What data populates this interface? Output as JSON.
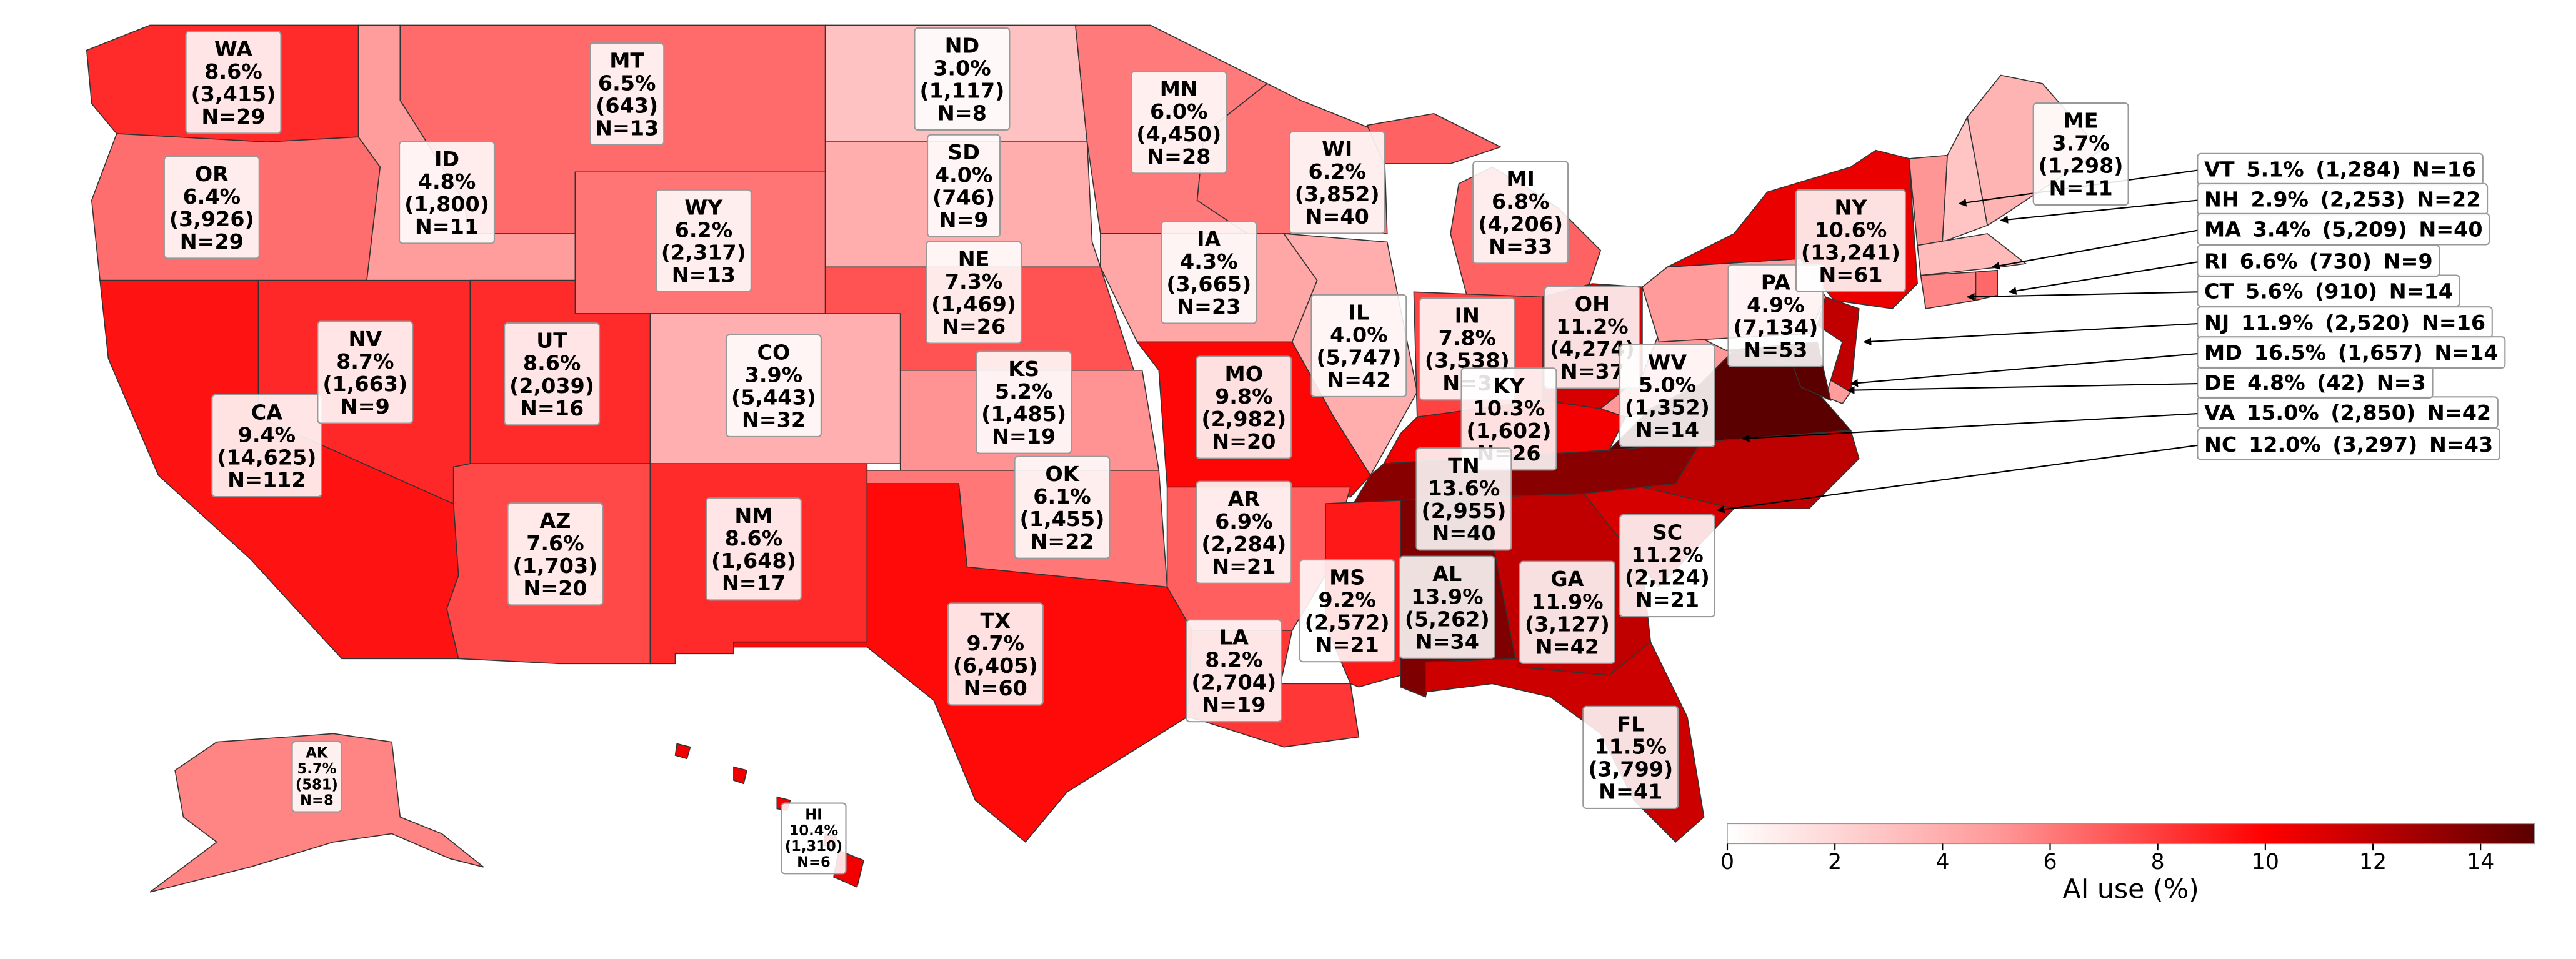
{
  "colorbar": {
    "label": "AI use (%)",
    "lim": [
      0,
      15
    ],
    "ticks": [
      0,
      2,
      4,
      6,
      8,
      10,
      12,
      14
    ],
    "colors": [
      "#ffffff",
      "#ff9999",
      "#ff0000",
      "#5a0000"
    ]
  },
  "states": [
    {
      "code": "WA",
      "value": 8.6,
      "value_label": "8.6%",
      "count": "(3,415)",
      "n": "N=29"
    },
    {
      "code": "OR",
      "value": 6.4,
      "value_label": "6.4%",
      "count": "(3,926)",
      "n": "N=29"
    },
    {
      "code": "CA",
      "value": 9.4,
      "value_label": "9.4%",
      "count": "(14,625)",
      "n": "N=112"
    },
    {
      "code": "NV",
      "value": 8.7,
      "value_label": "8.7%",
      "count": "(1,663)",
      "n": "N=9"
    },
    {
      "code": "ID",
      "value": 4.8,
      "value_label": "4.8%",
      "count": "(1,800)",
      "n": "N=11"
    },
    {
      "code": "MT",
      "value": 6.5,
      "value_label": "6.5%",
      "count": "(643)",
      "n": "N=13"
    },
    {
      "code": "WY",
      "value": 6.2,
      "value_label": "6.2%",
      "count": "(2,317)",
      "n": "N=13"
    },
    {
      "code": "UT",
      "value": 8.6,
      "value_label": "8.6%",
      "count": "(2,039)",
      "n": "N=16"
    },
    {
      "code": "CO",
      "value": 3.9,
      "value_label": "3.9%",
      "count": "(5,443)",
      "n": "N=32"
    },
    {
      "code": "AZ",
      "value": 7.6,
      "value_label": "7.6%",
      "count": "(1,703)",
      "n": "N=20"
    },
    {
      "code": "NM",
      "value": 8.6,
      "value_label": "8.6%",
      "count": "(1,648)",
      "n": "N=17"
    },
    {
      "code": "ND",
      "value": 3.0,
      "value_label": "3.0%",
      "count": "(1,117)",
      "n": "N=8"
    },
    {
      "code": "SD",
      "value": 4.0,
      "value_label": "4.0%",
      "count": "(746)",
      "n": "N=9"
    },
    {
      "code": "NE",
      "value": 7.3,
      "value_label": "7.3%",
      "count": "(1,469)",
      "n": "N=26"
    },
    {
      "code": "KS",
      "value": 5.2,
      "value_label": "5.2%",
      "count": "(1,485)",
      "n": "N=19"
    },
    {
      "code": "OK",
      "value": 6.1,
      "value_label": "6.1%",
      "count": "(1,455)",
      "n": "N=22"
    },
    {
      "code": "TX",
      "value": 9.7,
      "value_label": "9.7%",
      "count": "(6,405)",
      "n": "N=60"
    },
    {
      "code": "MN",
      "value": 6.0,
      "value_label": "6.0%",
      "count": "(4,450)",
      "n": "N=28"
    },
    {
      "code": "IA",
      "value": 4.3,
      "value_label": "4.3%",
      "count": "(3,665)",
      "n": "N=23"
    },
    {
      "code": "MO",
      "value": 9.8,
      "value_label": "9.8%",
      "count": "(2,982)",
      "n": "N=20"
    },
    {
      "code": "AR",
      "value": 6.9,
      "value_label": "6.9%",
      "count": "(2,284)",
      "n": "N=21"
    },
    {
      "code": "LA",
      "value": 8.2,
      "value_label": "8.2%",
      "count": "(2,704)",
      "n": "N=19"
    },
    {
      "code": "WI",
      "value": 6.2,
      "value_label": "6.2%",
      "count": "(3,852)",
      "n": "N=40"
    },
    {
      "code": "IL",
      "value": 4.0,
      "value_label": "4.0%",
      "count": "(5,747)",
      "n": "N=42"
    },
    {
      "code": "MI",
      "value": 6.8,
      "value_label": "6.8%",
      "count": "(4,206)",
      "n": "N=33"
    },
    {
      "code": "IN",
      "value": 7.8,
      "value_label": "7.8%",
      "count": "(3,538)",
      "n": "N=3"
    },
    {
      "code": "OH",
      "value": 11.2,
      "value_label": "11.2%",
      "count": "(4,274)",
      "n": "N=37"
    },
    {
      "code": "KY",
      "value": 10.3,
      "value_label": "10.3%",
      "count": "(1,602)",
      "n": "N=26"
    },
    {
      "code": "TN",
      "value": 13.6,
      "value_label": "13.6%",
      "count": "(2,955)",
      "n": "N=40"
    },
    {
      "code": "MS",
      "value": 9.2,
      "value_label": "9.2%",
      "count": "(2,572)",
      "n": "N=21"
    },
    {
      "code": "AL",
      "value": 13.9,
      "value_label": "13.9%",
      "count": "(5,262)",
      "n": "N=34"
    },
    {
      "code": "GA",
      "value": 11.9,
      "value_label": "11.9%",
      "count": "(3,127)",
      "n": "N=42"
    },
    {
      "code": "FL",
      "value": 11.5,
      "value_label": "11.5%",
      "count": "(3,799)",
      "n": "N=41"
    },
    {
      "code": "SC",
      "value": 11.2,
      "value_label": "11.2%",
      "count": "(2,124)",
      "n": "N=21"
    },
    {
      "code": "NC",
      "value": 12.0,
      "value_label": "12.0%",
      "count": "(3,297)",
      "n": "N=43"
    },
    {
      "code": "VA",
      "value": 15.0,
      "value_label": "15.0%",
      "count": "(2,850)",
      "n": "N=42"
    },
    {
      "code": "WV",
      "value": 5.0,
      "value_label": "5.0%",
      "count": "(1,352)",
      "n": "N=14"
    },
    {
      "code": "PA",
      "value": 4.9,
      "value_label": "4.9%",
      "count": "(7,134)",
      "n": "N=53"
    },
    {
      "code": "NY",
      "value": 10.6,
      "value_label": "10.6%",
      "count": "(13,241)",
      "n": "N=61"
    },
    {
      "code": "NJ",
      "value": 11.9,
      "value_label": "11.9%",
      "count": "(2,520)",
      "n": "N=16"
    },
    {
      "code": "DE",
      "value": 4.8,
      "value_label": "4.8%",
      "count": "(42)",
      "n": "N=3"
    },
    {
      "code": "MD",
      "value": 16.5,
      "value_label": "16.5%",
      "count": "(1,657)",
      "n": "N=14"
    },
    {
      "code": "VT",
      "value": 5.1,
      "value_label": "5.1%",
      "count": "(1,284)",
      "n": "N=16"
    },
    {
      "code": "NH",
      "value": 2.9,
      "value_label": "2.9%",
      "count": "(2,253)",
      "n": "N=22"
    },
    {
      "code": "MA",
      "value": 3.4,
      "value_label": "3.4%",
      "count": "(5,209)",
      "n": "N=40"
    },
    {
      "code": "CT",
      "value": 5.6,
      "value_label": "5.6%",
      "count": "(910)",
      "n": "N=14"
    },
    {
      "code": "RI",
      "value": 6.6,
      "value_label": "6.6%",
      "count": "(730)",
      "n": "N=9"
    },
    {
      "code": "ME",
      "value": 3.7,
      "value_label": "3.7%",
      "count": "(1,298)",
      "n": "N=11"
    },
    {
      "code": "AK",
      "value": 5.7,
      "value_label": "5.7%",
      "count": "(581)",
      "n": "N=8"
    },
    {
      "code": "HI",
      "value": 10.4,
      "value_label": "10.4%",
      "count": "(1,310)",
      "n": "N=6"
    }
  ]
}
